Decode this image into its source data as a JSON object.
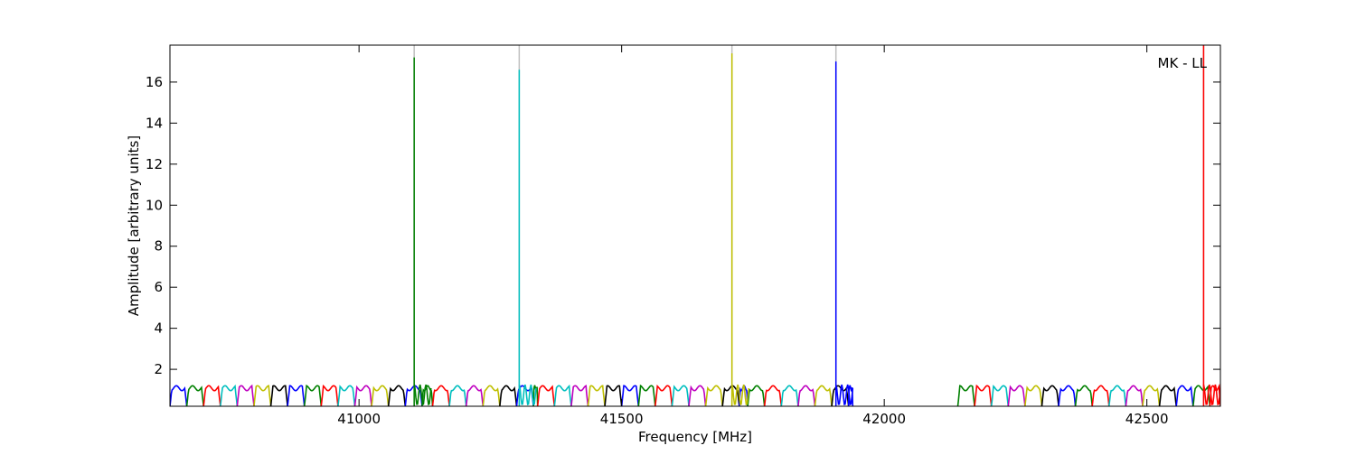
{
  "chart_data": {
    "type": "line",
    "title": "",
    "xlabel": "Frequency [MHz]",
    "ylabel": "Amplitude [arbitrary units]",
    "annotation": "MK - LL",
    "xlim": [
      40640,
      42640
    ],
    "ylim": [
      0.2,
      17.8
    ],
    "xticks": [
      41000,
      41500,
      42000,
      42500
    ],
    "yticks": [
      2,
      4,
      6,
      8,
      10,
      12,
      14,
      16
    ],
    "grid": false,
    "legend": "none",
    "color_cycle": [
      "#0000ff",
      "#008000",
      "#ff0000",
      "#00bfbf",
      "#bf00bf",
      "#bfbf00",
      "#000000"
    ],
    "channel_width_mhz": 32,
    "baseline_level": 0.2,
    "ripple_peak": 1.2,
    "band_segments": [
      {
        "start": 40640,
        "end": 41140
      },
      {
        "start": 41140,
        "end": 41340
      },
      {
        "start": 41340,
        "end": 41740
      },
      {
        "start": 41740,
        "end": 41940
      },
      {
        "start": 42140,
        "end": 42640
      }
    ],
    "series": [
      {
        "color": "#008000",
        "spike_x": 41105,
        "spike_y": 17.2
      },
      {
        "color": "#00bfbf",
        "spike_x": 41305,
        "spike_y": 16.6
      },
      {
        "color": "#bfbf00",
        "spike_x": 41710,
        "spike_y": 17.4
      },
      {
        "color": "#0000ff",
        "spike_x": 41908,
        "spike_y": 17.0
      },
      {
        "color": "#ff0000",
        "spike_x": 42608,
        "spike_y": 17.8
      }
    ],
    "spike_reference_color": "#bfbfbf",
    "spike_reference_y": 17.8
  }
}
